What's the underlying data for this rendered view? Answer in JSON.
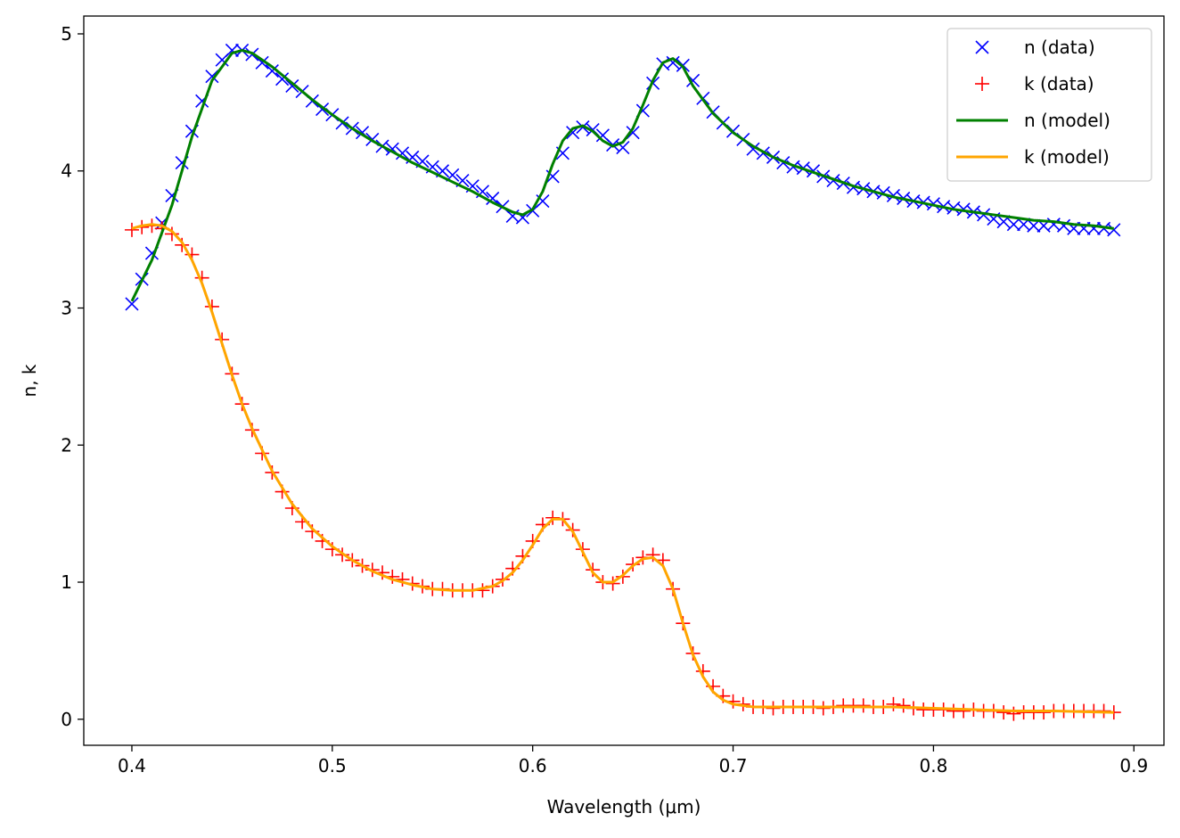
{
  "chart_data": {
    "type": "line",
    "title": "",
    "xlabel": "Wavelength (μm)",
    "ylabel": "n, k",
    "xlim": [
      0.376,
      0.915
    ],
    "ylim": [
      -0.19,
      5.13
    ],
    "xticks": [
      0.4,
      0.5,
      0.6,
      0.7,
      0.8,
      0.9
    ],
    "xtick_labels": [
      "0.4",
      "0.5",
      "0.6",
      "0.7",
      "0.8",
      "0.9"
    ],
    "yticks": [
      0,
      1,
      2,
      3,
      4,
      5
    ],
    "ytick_labels": [
      "0",
      "1",
      "2",
      "3",
      "4",
      "5"
    ],
    "grid": false,
    "legend_position": "top-right",
    "series": [
      {
        "name": "n (data)",
        "style": "marker",
        "marker": "x",
        "color": "#0000ff",
        "x": [
          0.4,
          0.405,
          0.41,
          0.415,
          0.42,
          0.425,
          0.43,
          0.435,
          0.44,
          0.445,
          0.45,
          0.455,
          0.46,
          0.465,
          0.47,
          0.475,
          0.48,
          0.485,
          0.49,
          0.495,
          0.5,
          0.505,
          0.51,
          0.515,
          0.52,
          0.525,
          0.53,
          0.535,
          0.54,
          0.545,
          0.55,
          0.555,
          0.56,
          0.565,
          0.57,
          0.575,
          0.58,
          0.585,
          0.59,
          0.595,
          0.6,
          0.605,
          0.61,
          0.615,
          0.62,
          0.625,
          0.63,
          0.635,
          0.64,
          0.645,
          0.65,
          0.655,
          0.66,
          0.665,
          0.67,
          0.675,
          0.68,
          0.685,
          0.69,
          0.695,
          0.7,
          0.705,
          0.71,
          0.715,
          0.72,
          0.725,
          0.73,
          0.735,
          0.74,
          0.745,
          0.75,
          0.755,
          0.76,
          0.765,
          0.77,
          0.775,
          0.78,
          0.785,
          0.79,
          0.795,
          0.8,
          0.805,
          0.81,
          0.815,
          0.82,
          0.825,
          0.83,
          0.835,
          0.84,
          0.845,
          0.85,
          0.855,
          0.86,
          0.865,
          0.87,
          0.875,
          0.88,
          0.885,
          0.89
        ],
        "y": [
          3.03,
          3.21,
          3.4,
          3.62,
          3.82,
          4.06,
          4.29,
          4.51,
          4.69,
          4.81,
          4.88,
          4.88,
          4.85,
          4.79,
          4.73,
          4.67,
          4.62,
          4.58,
          4.51,
          4.45,
          4.41,
          4.35,
          4.31,
          4.28,
          4.23,
          4.18,
          4.16,
          4.13,
          4.1,
          4.07,
          4.03,
          4.0,
          3.97,
          3.93,
          3.89,
          3.85,
          3.8,
          3.74,
          3.67,
          3.66,
          3.71,
          3.78,
          3.96,
          4.13,
          4.28,
          4.32,
          4.3,
          4.26,
          4.19,
          4.17,
          4.28,
          4.44,
          4.64,
          4.78,
          4.79,
          4.77,
          4.66,
          4.53,
          4.43,
          4.35,
          4.29,
          4.23,
          4.16,
          4.13,
          4.1,
          4.06,
          4.03,
          4.02,
          4.0,
          3.96,
          3.93,
          3.91,
          3.88,
          3.87,
          3.85,
          3.84,
          3.82,
          3.8,
          3.78,
          3.77,
          3.76,
          3.74,
          3.73,
          3.72,
          3.7,
          3.68,
          3.65,
          3.63,
          3.61,
          3.61,
          3.6,
          3.6,
          3.61,
          3.6,
          3.58,
          3.58,
          3.58,
          3.58,
          3.57
        ]
      },
      {
        "name": "k (data)",
        "style": "marker",
        "marker": "+",
        "color": "#ff0000",
        "x": [
          0.4,
          0.405,
          0.41,
          0.415,
          0.42,
          0.425,
          0.43,
          0.435,
          0.44,
          0.445,
          0.45,
          0.455,
          0.46,
          0.465,
          0.47,
          0.475,
          0.48,
          0.485,
          0.49,
          0.495,
          0.5,
          0.505,
          0.51,
          0.515,
          0.52,
          0.525,
          0.53,
          0.535,
          0.54,
          0.545,
          0.55,
          0.555,
          0.56,
          0.565,
          0.57,
          0.575,
          0.58,
          0.585,
          0.59,
          0.595,
          0.6,
          0.605,
          0.61,
          0.615,
          0.62,
          0.625,
          0.63,
          0.635,
          0.64,
          0.645,
          0.65,
          0.655,
          0.66,
          0.665,
          0.67,
          0.675,
          0.68,
          0.685,
          0.69,
          0.695,
          0.7,
          0.705,
          0.71,
          0.715,
          0.72,
          0.725,
          0.73,
          0.735,
          0.74,
          0.745,
          0.75,
          0.755,
          0.76,
          0.765,
          0.77,
          0.775,
          0.78,
          0.785,
          0.79,
          0.795,
          0.8,
          0.805,
          0.81,
          0.815,
          0.82,
          0.825,
          0.83,
          0.835,
          0.84,
          0.845,
          0.85,
          0.855,
          0.86,
          0.865,
          0.87,
          0.875,
          0.88,
          0.885,
          0.89
        ],
        "y": [
          3.57,
          3.59,
          3.6,
          3.58,
          3.54,
          3.46,
          3.39,
          3.22,
          3.01,
          2.77,
          2.52,
          2.3,
          2.11,
          1.94,
          1.8,
          1.66,
          1.54,
          1.44,
          1.37,
          1.3,
          1.24,
          1.2,
          1.16,
          1.12,
          1.09,
          1.07,
          1.04,
          1.02,
          0.99,
          0.97,
          0.95,
          0.95,
          0.94,
          0.94,
          0.94,
          0.94,
          0.97,
          1.02,
          1.1,
          1.19,
          1.3,
          1.42,
          1.47,
          1.46,
          1.38,
          1.24,
          1.09,
          1.0,
          0.99,
          1.04,
          1.13,
          1.18,
          1.2,
          1.16,
          0.95,
          0.7,
          0.48,
          0.35,
          0.24,
          0.17,
          0.13,
          0.11,
          0.09,
          0.09,
          0.08,
          0.09,
          0.09,
          0.09,
          0.09,
          0.08,
          0.09,
          0.1,
          0.1,
          0.1,
          0.09,
          0.09,
          0.11,
          0.1,
          0.08,
          0.07,
          0.07,
          0.07,
          0.06,
          0.06,
          0.07,
          0.06,
          0.06,
          0.05,
          0.04,
          0.05,
          0.05,
          0.05,
          0.06,
          0.06,
          0.06,
          0.06,
          0.06,
          0.06,
          0.05
        ]
      },
      {
        "name": "n (model)",
        "style": "line",
        "color": "#008000",
        "x": [
          0.4,
          0.41,
          0.42,
          0.43,
          0.44,
          0.45,
          0.455,
          0.46,
          0.47,
          0.48,
          0.49,
          0.5,
          0.51,
          0.52,
          0.53,
          0.54,
          0.55,
          0.56,
          0.57,
          0.58,
          0.59,
          0.595,
          0.6,
          0.605,
          0.61,
          0.615,
          0.62,
          0.625,
          0.63,
          0.635,
          0.64,
          0.645,
          0.65,
          0.655,
          0.66,
          0.665,
          0.67,
          0.675,
          0.68,
          0.69,
          0.7,
          0.71,
          0.72,
          0.73,
          0.74,
          0.75,
          0.76,
          0.77,
          0.78,
          0.79,
          0.8,
          0.81,
          0.82,
          0.83,
          0.84,
          0.85,
          0.86,
          0.87,
          0.88,
          0.89
        ],
        "y": [
          3.05,
          3.35,
          3.75,
          4.25,
          4.66,
          4.86,
          4.88,
          4.86,
          4.76,
          4.64,
          4.52,
          4.41,
          4.31,
          4.22,
          4.14,
          4.06,
          3.99,
          3.92,
          3.85,
          3.77,
          3.7,
          3.68,
          3.72,
          3.85,
          4.05,
          4.22,
          4.31,
          4.33,
          4.29,
          4.22,
          4.18,
          4.21,
          4.31,
          4.48,
          4.66,
          4.79,
          4.82,
          4.76,
          4.62,
          4.42,
          4.28,
          4.18,
          4.1,
          4.04,
          3.99,
          3.94,
          3.89,
          3.85,
          3.81,
          3.78,
          3.75,
          3.72,
          3.7,
          3.68,
          3.66,
          3.64,
          3.63,
          3.61,
          3.6,
          3.58
        ]
      },
      {
        "name": "k (model)",
        "style": "line",
        "color": "#ffa500",
        "x": [
          0.4,
          0.405,
          0.41,
          0.415,
          0.42,
          0.425,
          0.43,
          0.435,
          0.44,
          0.445,
          0.45,
          0.455,
          0.46,
          0.47,
          0.48,
          0.49,
          0.5,
          0.51,
          0.52,
          0.53,
          0.54,
          0.55,
          0.56,
          0.57,
          0.58,
          0.585,
          0.59,
          0.595,
          0.6,
          0.605,
          0.61,
          0.615,
          0.62,
          0.625,
          0.63,
          0.635,
          0.64,
          0.645,
          0.65,
          0.655,
          0.66,
          0.665,
          0.67,
          0.675,
          0.68,
          0.685,
          0.69,
          0.695,
          0.7,
          0.71,
          0.72,
          0.74,
          0.76,
          0.78,
          0.8,
          0.82,
          0.84,
          0.86,
          0.89
        ],
        "y": [
          3.58,
          3.6,
          3.61,
          3.6,
          3.56,
          3.48,
          3.35,
          3.18,
          2.97,
          2.74,
          2.51,
          2.3,
          2.12,
          1.81,
          1.57,
          1.39,
          1.26,
          1.16,
          1.08,
          1.02,
          0.98,
          0.95,
          0.94,
          0.94,
          0.97,
          1.01,
          1.07,
          1.16,
          1.27,
          1.39,
          1.46,
          1.46,
          1.37,
          1.22,
          1.07,
          1.0,
          1.0,
          1.05,
          1.12,
          1.17,
          1.18,
          1.12,
          0.95,
          0.7,
          0.47,
          0.31,
          0.2,
          0.14,
          0.11,
          0.09,
          0.09,
          0.09,
          0.09,
          0.09,
          0.08,
          0.07,
          0.06,
          0.06,
          0.05
        ]
      }
    ]
  }
}
